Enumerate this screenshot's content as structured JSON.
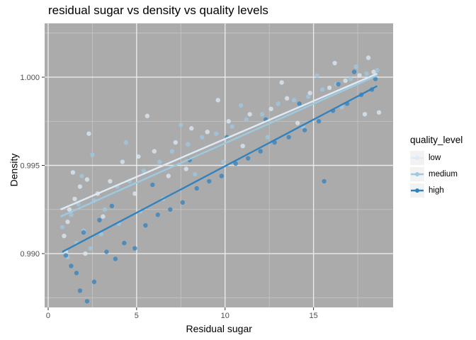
{
  "chart_data": {
    "type": "scatter",
    "title": "residual sugar vs density vs quality levels",
    "xlabel": "Residual sugar",
    "ylabel": "Density",
    "xlim": [
      -0.2,
      19.5
    ],
    "ylim": [
      0.98695,
      1.00305
    ],
    "x_ticks": [
      0,
      5,
      10,
      15
    ],
    "x_tick_labels": [
      "0",
      "5",
      "10",
      "15"
    ],
    "y_ticks": [
      0.99,
      0.995,
      1.0
    ],
    "y_tick_labels": [
      "0.990",
      "0.995",
      "1.000"
    ],
    "grid": true,
    "legend": {
      "title": "quality_level",
      "placement": "right",
      "entries": [
        "low",
        "medium",
        "high"
      ]
    },
    "series": [
      {
        "name": "low",
        "color": "#deebf7",
        "trend_line": {
          "x": [
            0.7,
            18.6
          ],
          "y": [
            0.9925,
            1.0002
          ]
        }
      },
      {
        "name": "medium",
        "color": "#9ecae1",
        "trend_line": {
          "x": [
            0.7,
            18.6
          ],
          "y": [
            0.9921,
            1.0001
          ]
        }
      },
      {
        "name": "high",
        "color": "#3182bd",
        "trend_line": {
          "x": [
            0.8,
            18.6
          ],
          "y": [
            0.9901,
            0.9995
          ]
        }
      }
    ],
    "points": [
      {
        "x": 1.2,
        "y": 0.9925,
        "s": 0
      },
      {
        "x": 1.5,
        "y": 0.9931,
        "s": 0
      },
      {
        "x": 1.8,
        "y": 0.9938,
        "s": 0
      },
      {
        "x": 2.2,
        "y": 0.9942,
        "s": 0
      },
      {
        "x": 1.1,
        "y": 0.9918,
        "s": 0
      },
      {
        "x": 1.4,
        "y": 0.9946,
        "s": 0
      },
      {
        "x": 2.8,
        "y": 0.9934,
        "s": 0
      },
      {
        "x": 3.5,
        "y": 0.9941,
        "s": 0
      },
      {
        "x": 4.2,
        "y": 0.9952,
        "s": 0
      },
      {
        "x": 5.1,
        "y": 0.9955,
        "s": 0
      },
      {
        "x": 6.0,
        "y": 0.9958,
        "s": 0
      },
      {
        "x": 7.2,
        "y": 0.9963,
        "s": 0
      },
      {
        "x": 8.1,
        "y": 0.9971,
        "s": 0
      },
      {
        "x": 9.0,
        "y": 0.9969,
        "s": 0
      },
      {
        "x": 10.2,
        "y": 0.9975,
        "s": 0
      },
      {
        "x": 11.4,
        "y": 0.9979,
        "s": 0
      },
      {
        "x": 12.6,
        "y": 0.9982,
        "s": 0
      },
      {
        "x": 13.5,
        "y": 0.9988,
        "s": 0
      },
      {
        "x": 14.8,
        "y": 0.9991,
        "s": 0
      },
      {
        "x": 15.9,
        "y": 0.9994,
        "s": 0
      },
      {
        "x": 16.8,
        "y": 0.9998,
        "s": 0
      },
      {
        "x": 17.6,
        "y": 1.0001,
        "s": 0
      },
      {
        "x": 18.4,
        "y": 1.0003,
        "s": 0
      },
      {
        "x": 2.3,
        "y": 0.9968,
        "s": 0
      },
      {
        "x": 5.6,
        "y": 0.9978,
        "s": 0
      },
      {
        "x": 9.6,
        "y": 0.9987,
        "s": 0
      },
      {
        "x": 13.2,
        "y": 0.9997,
        "s": 0
      },
      {
        "x": 16.2,
        "y": 1.0008,
        "s": 0
      },
      {
        "x": 18.1,
        "y": 1.0011,
        "s": 0
      },
      {
        "x": 4.9,
        "y": 0.9934,
        "s": 0
      },
      {
        "x": 7.8,
        "y": 0.9948,
        "s": 0
      },
      {
        "x": 11.0,
        "y": 0.9961,
        "s": 0
      },
      {
        "x": 14.1,
        "y": 0.9974,
        "s": 0
      },
      {
        "x": 17.9,
        "y": 0.9979,
        "s": 0
      },
      {
        "x": 18.7,
        "y": 0.998,
        "s": 0
      },
      {
        "x": 0.9,
        "y": 0.991,
        "s": 0
      },
      {
        "x": 1.0,
        "y": 0.9901,
        "s": 0
      },
      {
        "x": 2.1,
        "y": 0.99,
        "s": 0
      },
      {
        "x": 3.1,
        "y": 0.9921,
        "s": 0
      },
      {
        "x": 6.8,
        "y": 0.9944,
        "s": 0
      },
      {
        "x": 1.3,
        "y": 0.9922,
        "s": 1
      },
      {
        "x": 1.7,
        "y": 0.9928,
        "s": 1
      },
      {
        "x": 2.0,
        "y": 0.9913,
        "s": 1
      },
      {
        "x": 2.6,
        "y": 0.993,
        "s": 1
      },
      {
        "x": 3.2,
        "y": 0.9925,
        "s": 1
      },
      {
        "x": 3.9,
        "y": 0.9938,
        "s": 1
      },
      {
        "x": 4.6,
        "y": 0.9941,
        "s": 1
      },
      {
        "x": 5.4,
        "y": 0.9947,
        "s": 1
      },
      {
        "x": 6.3,
        "y": 0.9952,
        "s": 1
      },
      {
        "x": 7.0,
        "y": 0.9958,
        "s": 1
      },
      {
        "x": 7.9,
        "y": 0.9962,
        "s": 1
      },
      {
        "x": 8.7,
        "y": 0.9966,
        "s": 1
      },
      {
        "x": 9.5,
        "y": 0.9968,
        "s": 1
      },
      {
        "x": 10.4,
        "y": 0.9972,
        "s": 1
      },
      {
        "x": 11.2,
        "y": 0.9976,
        "s": 1
      },
      {
        "x": 12.1,
        "y": 0.9979,
        "s": 1
      },
      {
        "x": 13.0,
        "y": 0.9985,
        "s": 1
      },
      {
        "x": 13.9,
        "y": 0.9987,
        "s": 1
      },
      {
        "x": 14.7,
        "y": 0.9989,
        "s": 1
      },
      {
        "x": 15.5,
        "y": 0.9993,
        "s": 1
      },
      {
        "x": 16.3,
        "y": 0.9996,
        "s": 1
      },
      {
        "x": 17.1,
        "y": 0.9999,
        "s": 1
      },
      {
        "x": 18.0,
        "y": 1.0002,
        "s": 1
      },
      {
        "x": 18.6,
        "y": 1.0004,
        "s": 1
      },
      {
        "x": 1.1,
        "y": 0.9898,
        "s": 1
      },
      {
        "x": 1.6,
        "y": 0.9906,
        "s": 1
      },
      {
        "x": 2.4,
        "y": 0.9903,
        "s": 1
      },
      {
        "x": 3.0,
        "y": 0.9911,
        "s": 1
      },
      {
        "x": 4.0,
        "y": 0.9917,
        "s": 1
      },
      {
        "x": 5.2,
        "y": 0.9924,
        "s": 1
      },
      {
        "x": 6.5,
        "y": 0.9931,
        "s": 1
      },
      {
        "x": 8.3,
        "y": 0.9945,
        "s": 1
      },
      {
        "x": 9.9,
        "y": 0.9952,
        "s": 1
      },
      {
        "x": 12.4,
        "y": 0.9966,
        "s": 1
      },
      {
        "x": 14.4,
        "y": 0.9972,
        "s": 1
      },
      {
        "x": 16.6,
        "y": 0.9983,
        "s": 1
      },
      {
        "x": 2.5,
        "y": 0.9956,
        "s": 1
      },
      {
        "x": 4.4,
        "y": 0.9963,
        "s": 1
      },
      {
        "x": 7.5,
        "y": 0.9973,
        "s": 1
      },
      {
        "x": 10.9,
        "y": 0.9984,
        "s": 1
      },
      {
        "x": 15.2,
        "y": 1.0001,
        "s": 1
      },
      {
        "x": 17.4,
        "y": 1.0006,
        "s": 1
      },
      {
        "x": 0.8,
        "y": 0.9915,
        "s": 1
      },
      {
        "x": 1.9,
        "y": 0.9944,
        "s": 1
      },
      {
        "x": 1.0,
        "y": 0.9899,
        "s": 2
      },
      {
        "x": 1.3,
        "y": 0.9893,
        "s": 2
      },
      {
        "x": 1.6,
        "y": 0.9889,
        "s": 2
      },
      {
        "x": 1.8,
        "y": 0.9879,
        "s": 2
      },
      {
        "x": 2.2,
        "y": 0.9873,
        "s": 2
      },
      {
        "x": 2.6,
        "y": 0.9884,
        "s": 2
      },
      {
        "x": 3.3,
        "y": 0.9901,
        "s": 2
      },
      {
        "x": 3.8,
        "y": 0.9897,
        "s": 2
      },
      {
        "x": 4.3,
        "y": 0.9906,
        "s": 2
      },
      {
        "x": 4.9,
        "y": 0.9903,
        "s": 2
      },
      {
        "x": 5.5,
        "y": 0.9916,
        "s": 2
      },
      {
        "x": 6.2,
        "y": 0.9922,
        "s": 2
      },
      {
        "x": 6.9,
        "y": 0.9925,
        "s": 2
      },
      {
        "x": 7.6,
        "y": 0.9929,
        "s": 2
      },
      {
        "x": 8.4,
        "y": 0.9937,
        "s": 2
      },
      {
        "x": 9.1,
        "y": 0.9941,
        "s": 2
      },
      {
        "x": 9.8,
        "y": 0.9944,
        "s": 2
      },
      {
        "x": 10.6,
        "y": 0.9951,
        "s": 2
      },
      {
        "x": 11.3,
        "y": 0.9954,
        "s": 2
      },
      {
        "x": 12.0,
        "y": 0.9958,
        "s": 2
      },
      {
        "x": 12.8,
        "y": 0.9963,
        "s": 2
      },
      {
        "x": 13.6,
        "y": 0.9966,
        "s": 2
      },
      {
        "x": 14.5,
        "y": 0.997,
        "s": 2
      },
      {
        "x": 15.3,
        "y": 0.9975,
        "s": 2
      },
      {
        "x": 16.1,
        "y": 0.9981,
        "s": 2
      },
      {
        "x": 16.9,
        "y": 0.9985,
        "s": 2
      },
      {
        "x": 17.7,
        "y": 0.999,
        "s": 2
      },
      {
        "x": 18.3,
        "y": 0.9993,
        "s": 2
      },
      {
        "x": 2.0,
        "y": 0.9912,
        "s": 2
      },
      {
        "x": 3.6,
        "y": 0.9927,
        "s": 2
      },
      {
        "x": 5.9,
        "y": 0.9939,
        "s": 2
      },
      {
        "x": 8.0,
        "y": 0.9953,
        "s": 2
      },
      {
        "x": 10.1,
        "y": 0.9966,
        "s": 2
      },
      {
        "x": 12.3,
        "y": 0.9976,
        "s": 2
      },
      {
        "x": 14.2,
        "y": 0.9985,
        "s": 2
      },
      {
        "x": 16.4,
        "y": 0.9996,
        "s": 2
      },
      {
        "x": 15.6,
        "y": 0.9941,
        "s": 2
      },
      {
        "x": 17.3,
        "y": 1.0003,
        "s": 2
      },
      {
        "x": 18.5,
        "y": 0.9999,
        "s": 2
      },
      {
        "x": 2.9,
        "y": 0.9919,
        "s": 2
      }
    ]
  }
}
